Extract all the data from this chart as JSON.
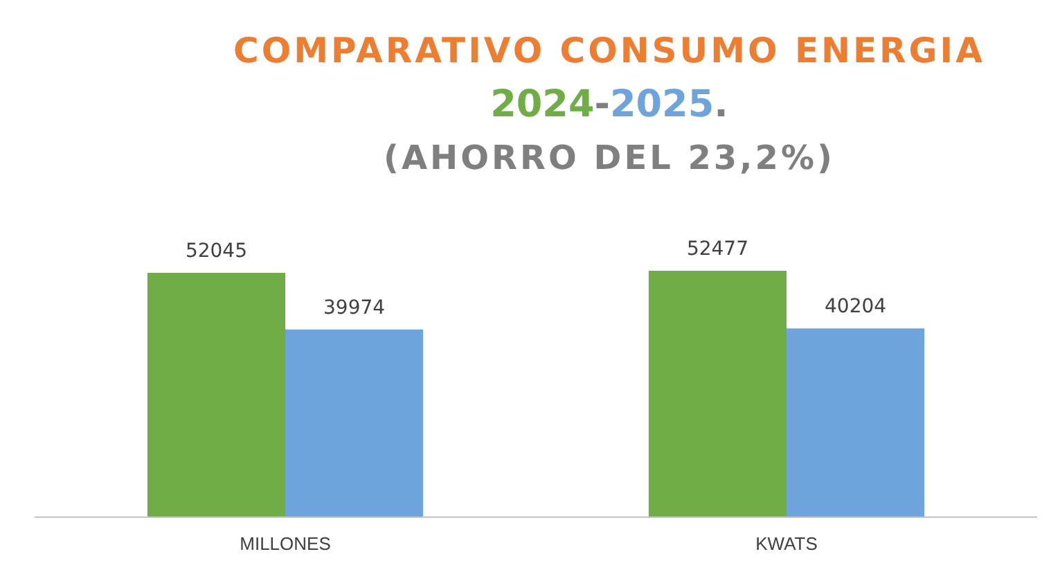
{
  "chart_data": {
    "type": "bar",
    "title": "COMPARATIVO CONSUMO ENERGIA",
    "subtitle": "(AHORRO DEL 23,2%)",
    "categories": [
      "MILLONES",
      "KWATS"
    ],
    "series": [
      {
        "name": "2024",
        "color": "#70ad47",
        "values": [
          52045,
          52477
        ]
      },
      {
        "name": "2025",
        "color": "#6fa3dc",
        "values": [
          39974,
          40204
        ]
      }
    ],
    "annotations": [
      "-",
      "."
    ],
    "data_labels": true,
    "legend": "top",
    "grid": false
  }
}
